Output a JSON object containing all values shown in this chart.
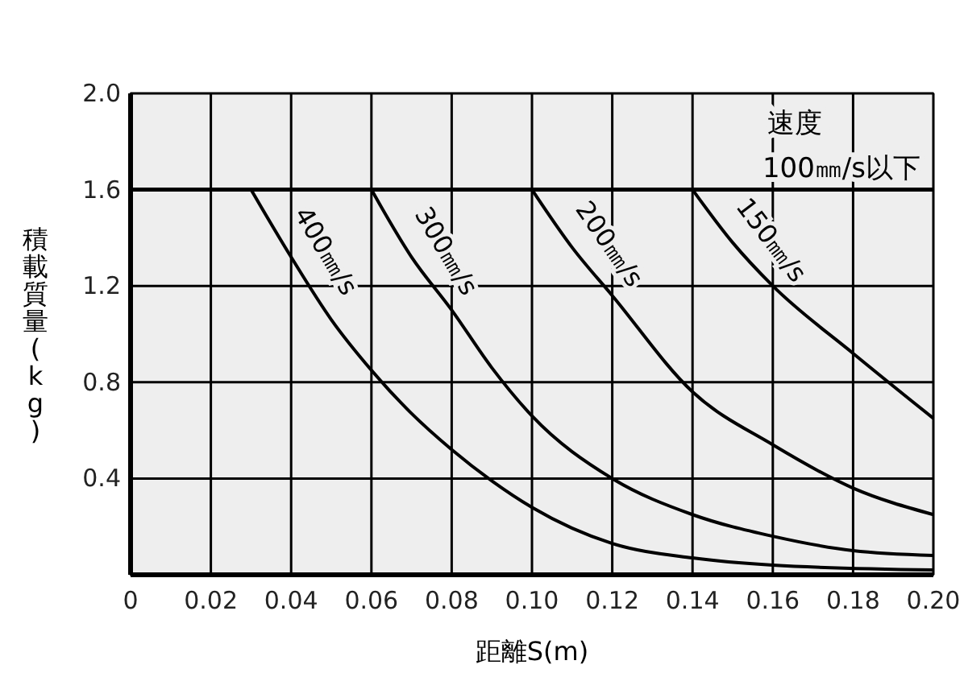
{
  "chart_data": {
    "type": "line",
    "xlabel": "距離S(m)",
    "ylabel": "積載質量(kg)",
    "xlim": [
      0,
      0.2
    ],
    "ylim": [
      0,
      2.0
    ],
    "xticks": [
      {
        "value": 0,
        "label": "0"
      },
      {
        "value": 0.02,
        "label": "0.02"
      },
      {
        "value": 0.04,
        "label": "0.04"
      },
      {
        "value": 0.06,
        "label": "0.06"
      },
      {
        "value": 0.08,
        "label": "0.08"
      },
      {
        "value": 0.1,
        "label": "0.10"
      },
      {
        "value": 0.12,
        "label": "0.12"
      },
      {
        "value": 0.14,
        "label": "0.14"
      },
      {
        "value": 0.16,
        "label": "0.16"
      },
      {
        "value": 0.18,
        "label": "0.18"
      },
      {
        "value": 0.2,
        "label": "0.20"
      }
    ],
    "yticks": [
      {
        "value": 0.4,
        "label": "0.4"
      },
      {
        "value": 0.8,
        "label": "0.8"
      },
      {
        "value": 1.2,
        "label": "1.2"
      },
      {
        "value": 1.6,
        "label": "1.6"
      },
      {
        "value": 2.0,
        "label": "2.0"
      }
    ],
    "grid": true,
    "line_style": "solid",
    "marker": "none",
    "annotations": [
      "速度"
    ],
    "series": [
      {
        "name": "100㎜/s以下",
        "color": "#000000",
        "x": [
          0,
          0.2
        ],
        "values": [
          1.6,
          1.6
        ]
      },
      {
        "name": "400㎜/s",
        "color": "#000000",
        "x": [
          0.03,
          0.04,
          0.05,
          0.06,
          0.07,
          0.08,
          0.09,
          0.1,
          0.12,
          0.14,
          0.16,
          0.2
        ],
        "values": [
          1.6,
          1.32,
          1.06,
          0.85,
          0.67,
          0.52,
          0.39,
          0.28,
          0.13,
          0.07,
          0.04,
          0.02
        ]
      },
      {
        "name": "300㎜/s",
        "color": "#000000",
        "x": [
          0.06,
          0.07,
          0.08,
          0.09,
          0.1,
          0.12,
          0.14,
          0.16,
          0.18,
          0.2
        ],
        "values": [
          1.6,
          1.32,
          1.1,
          0.86,
          0.66,
          0.4,
          0.25,
          0.16,
          0.1,
          0.08
        ]
      },
      {
        "name": "200㎜/s",
        "color": "#000000",
        "x": [
          0.1,
          0.11,
          0.12,
          0.14,
          0.16,
          0.18,
          0.2
        ],
        "values": [
          1.6,
          1.36,
          1.16,
          0.76,
          0.54,
          0.36,
          0.25
        ]
      },
      {
        "name": "150㎜/s",
        "color": "#000000",
        "x": [
          0.14,
          0.15,
          0.16,
          0.18,
          0.2
        ],
        "values": [
          1.6,
          1.38,
          1.2,
          0.92,
          0.65
        ]
      }
    ]
  }
}
